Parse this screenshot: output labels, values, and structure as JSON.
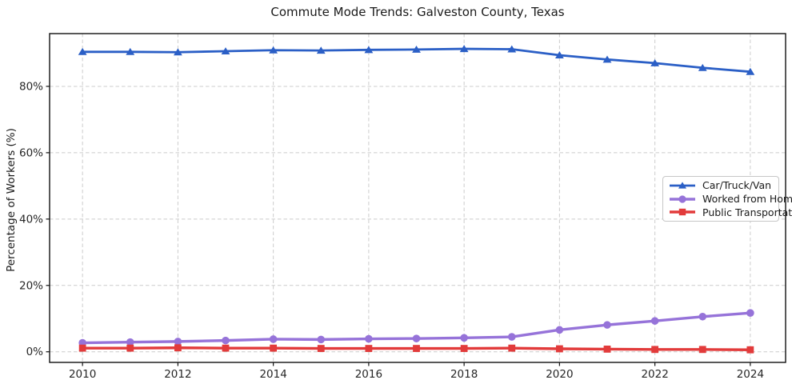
{
  "chart_data": {
    "type": "line",
    "title": "Commute Mode Trends: Galveston County, Texas",
    "xlabel": "",
    "ylabel": "Percentage of Workers (%)",
    "x": [
      2010,
      2011,
      2012,
      2013,
      2014,
      2015,
      2016,
      2017,
      2018,
      2019,
      2020,
      2021,
      2022,
      2023,
      2024
    ],
    "series": [
      {
        "name": "Car/Truck/Van",
        "color": "#2b5fc6",
        "marker": "triangle",
        "values": [
          90.4,
          90.4,
          90.3,
          90.6,
          90.9,
          90.8,
          91.0,
          91.1,
          91.3,
          91.2,
          89.4,
          88.1,
          87.0,
          85.6,
          84.4
        ]
      },
      {
        "name": "Worked from Home",
        "color": "#9673d9",
        "marker": "circle",
        "values": [
          2.7,
          2.9,
          3.1,
          3.4,
          3.8,
          3.7,
          3.9,
          4.0,
          4.2,
          4.5,
          6.6,
          8.1,
          9.3,
          10.6,
          11.7
        ]
      },
      {
        "name": "Public Transportation",
        "color": "#e23b3b",
        "marker": "square",
        "values": [
          1.1,
          1.1,
          1.2,
          1.1,
          1.1,
          1.0,
          1.0,
          1.0,
          1.0,
          1.1,
          0.9,
          0.8,
          0.7,
          0.7,
          0.6
        ]
      }
    ],
    "xlim": [
      2009.31,
      2024.74
    ],
    "ylim": [
      -3.2,
      95.9
    ],
    "xticks": [
      2010,
      2012,
      2014,
      2016,
      2018,
      2020,
      2022,
      2024
    ],
    "xticklabels": [
      "2010",
      "2012",
      "2014",
      "2016",
      "2018",
      "2020",
      "2022",
      "2024"
    ],
    "yticks": [
      0,
      20,
      40,
      60,
      80
    ],
    "yticklabels": [
      "0%",
      "20%",
      "40%",
      "60%",
      "80%"
    ],
    "grid": true,
    "grid_style": "dashed",
    "legend_position": "center-right"
  },
  "colors": {
    "grid": "#cccccc",
    "spine": "#111111",
    "text": "#262626",
    "background": "#ffffff"
  }
}
